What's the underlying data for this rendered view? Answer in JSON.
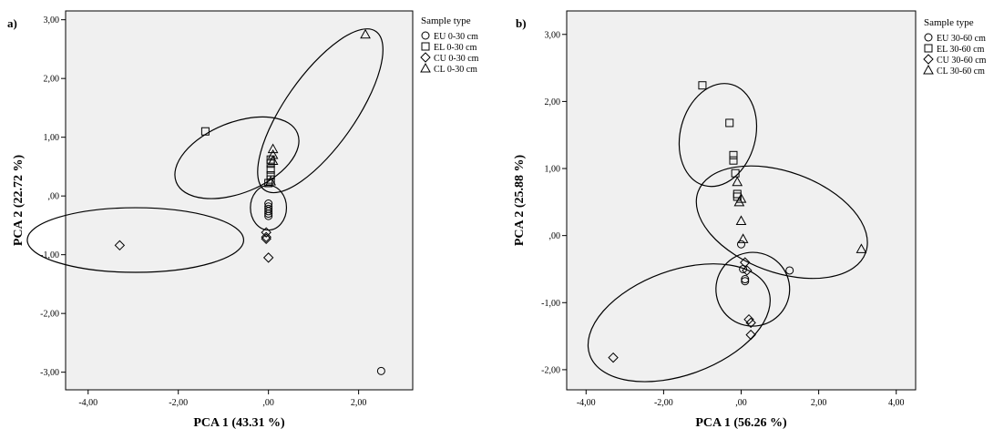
{
  "colors": {
    "plot_background": "#f0f0f0",
    "axes": "#000000",
    "marker": "#000000",
    "ellipse": "#000000",
    "page_background": "#ffffff"
  },
  "chart_data": [
    {
      "type": "scatter",
      "panel_label": "a)",
      "xlabel": "PCA 1 (43.31 %)",
      "ylabel": "PCA 2 (22.72 %)",
      "xlim": [
        -4.5,
        3.2
      ],
      "ylim": [
        -3.3,
        3.15
      ],
      "xticks": [
        -4,
        -2,
        0,
        2
      ],
      "xtick_labels": [
        "-4,00",
        "-2,00",
        ",00",
        "2,00"
      ],
      "yticks": [
        3,
        2,
        1,
        0,
        -1,
        -2,
        -3
      ],
      "ytick_labels": [
        "3,00",
        "2,00",
        "1,00",
        ",00",
        "-1,00",
        "-2,00",
        "-3,00"
      ],
      "grid": false,
      "legend": {
        "title": "Sample type",
        "placement": "right-outside-top",
        "entries": [
          {
            "marker": "circle",
            "label": "EU 0-30 cm"
          },
          {
            "marker": "square",
            "label": "EL 0-30 cm"
          },
          {
            "marker": "diamond",
            "label": "CU 0-30 cm"
          },
          {
            "marker": "triangle",
            "label": "CL 0-30 cm"
          }
        ]
      },
      "series": [
        {
          "name": "EU 0-30 cm",
          "marker": "circle",
          "points": [
            [
              2.5,
              -2.98
            ],
            [
              0.0,
              -0.13
            ],
            [
              0.0,
              -0.18
            ],
            [
              0.0,
              -0.22
            ],
            [
              0.0,
              -0.26
            ],
            [
              0.0,
              -0.3
            ],
            [
              0.0,
              -0.34
            ]
          ]
        },
        {
          "name": "EL 0-30 cm",
          "marker": "square",
          "points": [
            [
              -1.4,
              1.1
            ],
            [
              0.05,
              0.55
            ],
            [
              0.05,
              0.45
            ],
            [
              0.05,
              0.35
            ],
            [
              0.05,
              0.28
            ],
            [
              0.0,
              0.22
            ],
            [
              0.05,
              0.62
            ]
          ]
        },
        {
          "name": "CU 0-30 cm",
          "marker": "diamond",
          "points": [
            [
              -3.3,
              -0.84
            ],
            [
              0.0,
              -1.05
            ],
            [
              -0.05,
              -0.62
            ],
            [
              -0.05,
              -0.7
            ],
            [
              -0.05,
              -0.73
            ]
          ]
        },
        {
          "name": "CL 0-30 cm",
          "marker": "triangle",
          "points": [
            [
              2.15,
              2.75
            ],
            [
              0.1,
              0.8
            ],
            [
              0.1,
              0.7
            ],
            [
              0.1,
              0.6
            ],
            [
              0.05,
              0.25
            ]
          ]
        }
      ],
      "ellipses": [
        {
          "center": [
            -2.95,
            -0.75
          ],
          "rx": 2.4,
          "ry": 0.55,
          "angle": 0
        },
        {
          "center": [
            0.0,
            -0.2
          ],
          "rx": 0.4,
          "ry": 0.38,
          "angle": 0
        },
        {
          "center": [
            -0.7,
            0.65
          ],
          "rx": 1.45,
          "ry": 0.6,
          "angle": 22
        },
        {
          "center": [
            1.15,
            1.45
          ],
          "rx": 2.15,
          "ry": 0.6,
          "angle": 55
        }
      ]
    },
    {
      "type": "scatter",
      "panel_label": "b)",
      "xlabel": "PCA 1 (56.26 %)",
      "ylabel": "PCA 2 (25.88 %)",
      "xlim": [
        -4.5,
        4.5
      ],
      "ylim": [
        -2.3,
        3.35
      ],
      "xticks": [
        -4,
        -2,
        0,
        2,
        4
      ],
      "xtick_labels": [
        "-4,00",
        "-2,00",
        ",00",
        "2,00",
        "4,00"
      ],
      "yticks": [
        3,
        2,
        1,
        0,
        -1,
        -2
      ],
      "ytick_labels": [
        "3,00",
        "2,00",
        "1,00",
        ",00",
        "-1,00",
        "-2,00"
      ],
      "grid": false,
      "legend": {
        "title": "Sample type",
        "placement": "right-outside-top",
        "entries": [
          {
            "marker": "circle",
            "label": "EU 30-60 cm"
          },
          {
            "marker": "square",
            "label": "EL 30-60 cm"
          },
          {
            "marker": "diamond",
            "label": "CU 30-60 cm"
          },
          {
            "marker": "triangle",
            "label": "CL 30-60 cm"
          }
        ]
      },
      "series": [
        {
          "name": "EU 30-60 cm",
          "marker": "circle",
          "points": [
            [
              1.25,
              -0.52
            ],
            [
              0.0,
              -0.13
            ],
            [
              0.05,
              -0.5
            ],
            [
              0.1,
              -0.68
            ],
            [
              0.1,
              -0.65
            ]
          ]
        },
        {
          "name": "EL 30-60 cm",
          "marker": "square",
          "points": [
            [
              -1.0,
              2.24
            ],
            [
              -0.3,
              1.68
            ],
            [
              -0.2,
              1.2
            ],
            [
              -0.2,
              1.12
            ],
            [
              -0.15,
              0.93
            ],
            [
              -0.1,
              0.62
            ],
            [
              -0.1,
              0.58
            ]
          ]
        },
        {
          "name": "CU 30-60 cm",
          "marker": "diamond",
          "points": [
            [
              -3.3,
              -1.82
            ],
            [
              0.1,
              -0.4
            ],
            [
              0.15,
              -0.52
            ],
            [
              0.2,
              -1.25
            ],
            [
              0.25,
              -1.3
            ],
            [
              0.25,
              -1.48
            ]
          ]
        },
        {
          "name": "CL 30-60 cm",
          "marker": "triangle",
          "points": [
            [
              3.1,
              -0.2
            ],
            [
              -0.1,
              0.8
            ],
            [
              -0.05,
              0.5
            ],
            [
              0.0,
              0.22
            ],
            [
              0.05,
              -0.05
            ],
            [
              0.0,
              0.55
            ]
          ]
        }
      ],
      "ellipses": [
        {
          "center": [
            -0.6,
            1.5
          ],
          "rx": 1.35,
          "ry": 0.56,
          "angle": 75
        },
        {
          "center": [
            1.05,
            0.2
          ],
          "rx": 2.3,
          "ry": 0.75,
          "angle": -20
        },
        {
          "center": [
            0.3,
            -0.8
          ],
          "rx": 0.95,
          "ry": 0.55,
          "angle": -35
        },
        {
          "center": [
            -1.6,
            -1.3
          ],
          "rx": 2.45,
          "ry": 0.78,
          "angle": 20
        }
      ]
    }
  ]
}
